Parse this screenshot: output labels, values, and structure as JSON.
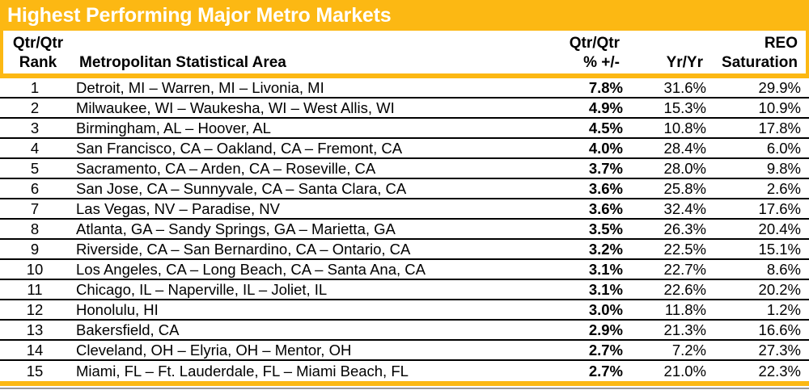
{
  "title": "Highest Performing Major Metro Markets",
  "colors": {
    "gold": "#FCB813",
    "row_line": "#000000",
    "bottom_edge_gray": "#9a9a9a",
    "title_text": "#ffffff"
  },
  "columns": {
    "rank_line1": "Qtr/Qtr",
    "rank_line2": "Rank",
    "metro": "Metropolitan Statistical Area",
    "qtr_line1": "Qtr/Qtr",
    "qtr_line2": "% +/-",
    "yr": "Yr/Yr",
    "reo_line1": "REO",
    "reo_line2": "Saturation"
  },
  "rows": [
    {
      "rank": "1",
      "metro": "Detroit, MI – Warren, MI – Livonia, MI",
      "qtr": "7.8%",
      "yr": "31.6%",
      "reo": "29.9%"
    },
    {
      "rank": "2",
      "metro": "Milwaukee, WI – Waukesha, WI – West Allis, WI",
      "qtr": "4.9%",
      "yr": "15.3%",
      "reo": "10.9%"
    },
    {
      "rank": "3",
      "metro": "Birmingham, AL – Hoover, AL",
      "qtr": "4.5%",
      "yr": "10.8%",
      "reo": "17.8%"
    },
    {
      "rank": "4",
      "metro": "San Francisco, CA – Oakland, CA – Fremont, CA",
      "qtr": "4.0%",
      "yr": "28.4%",
      "reo": "6.0%"
    },
    {
      "rank": "5",
      "metro": "Sacramento, CA – Arden, CA – Roseville, CA",
      "qtr": "3.7%",
      "yr": "28.0%",
      "reo": "9.8%"
    },
    {
      "rank": "6",
      "metro": "San Jose, CA – Sunnyvale, CA – Santa Clara, CA",
      "qtr": "3.6%",
      "yr": "25.8%",
      "reo": "2.6%"
    },
    {
      "rank": "7",
      "metro": "Las Vegas, NV – Paradise, NV",
      "qtr": "3.6%",
      "yr": "32.4%",
      "reo": "17.6%"
    },
    {
      "rank": "8",
      "metro": "Atlanta, GA – Sandy Springs, GA – Marietta, GA",
      "qtr": "3.5%",
      "yr": "26.3%",
      "reo": "20.4%"
    },
    {
      "rank": "9",
      "metro": "Riverside, CA – San Bernardino, CA – Ontario, CA",
      "qtr": "3.2%",
      "yr": "22.5%",
      "reo": "15.1%"
    },
    {
      "rank": "10",
      "metro": "Los Angeles, CA – Long Beach, CA – Santa Ana, CA",
      "qtr": "3.1%",
      "yr": "22.7%",
      "reo": "8.6%"
    },
    {
      "rank": "11",
      "metro": "Chicago, IL – Naperville, IL – Joliet, IL",
      "qtr": "3.1%",
      "yr": "22.6%",
      "reo": "20.2%"
    },
    {
      "rank": "12",
      "metro": "Honolulu, HI",
      "qtr": "3.0%",
      "yr": "11.8%",
      "reo": "1.2%"
    },
    {
      "rank": "13",
      "metro": "Bakersfield, CA",
      "qtr": "2.9%",
      "yr": "21.3%",
      "reo": "16.6%"
    },
    {
      "rank": "14",
      "metro": "Cleveland, OH – Elyria, OH – Mentor, OH",
      "qtr": "2.7%",
      "yr": "7.2%",
      "reo": "27.3%"
    },
    {
      "rank": "15",
      "metro": "Miami, FL – Ft. Lauderdale, FL – Miami Beach, FL",
      "qtr": "2.7%",
      "yr": "21.0%",
      "reo": "22.3%"
    }
  ]
}
